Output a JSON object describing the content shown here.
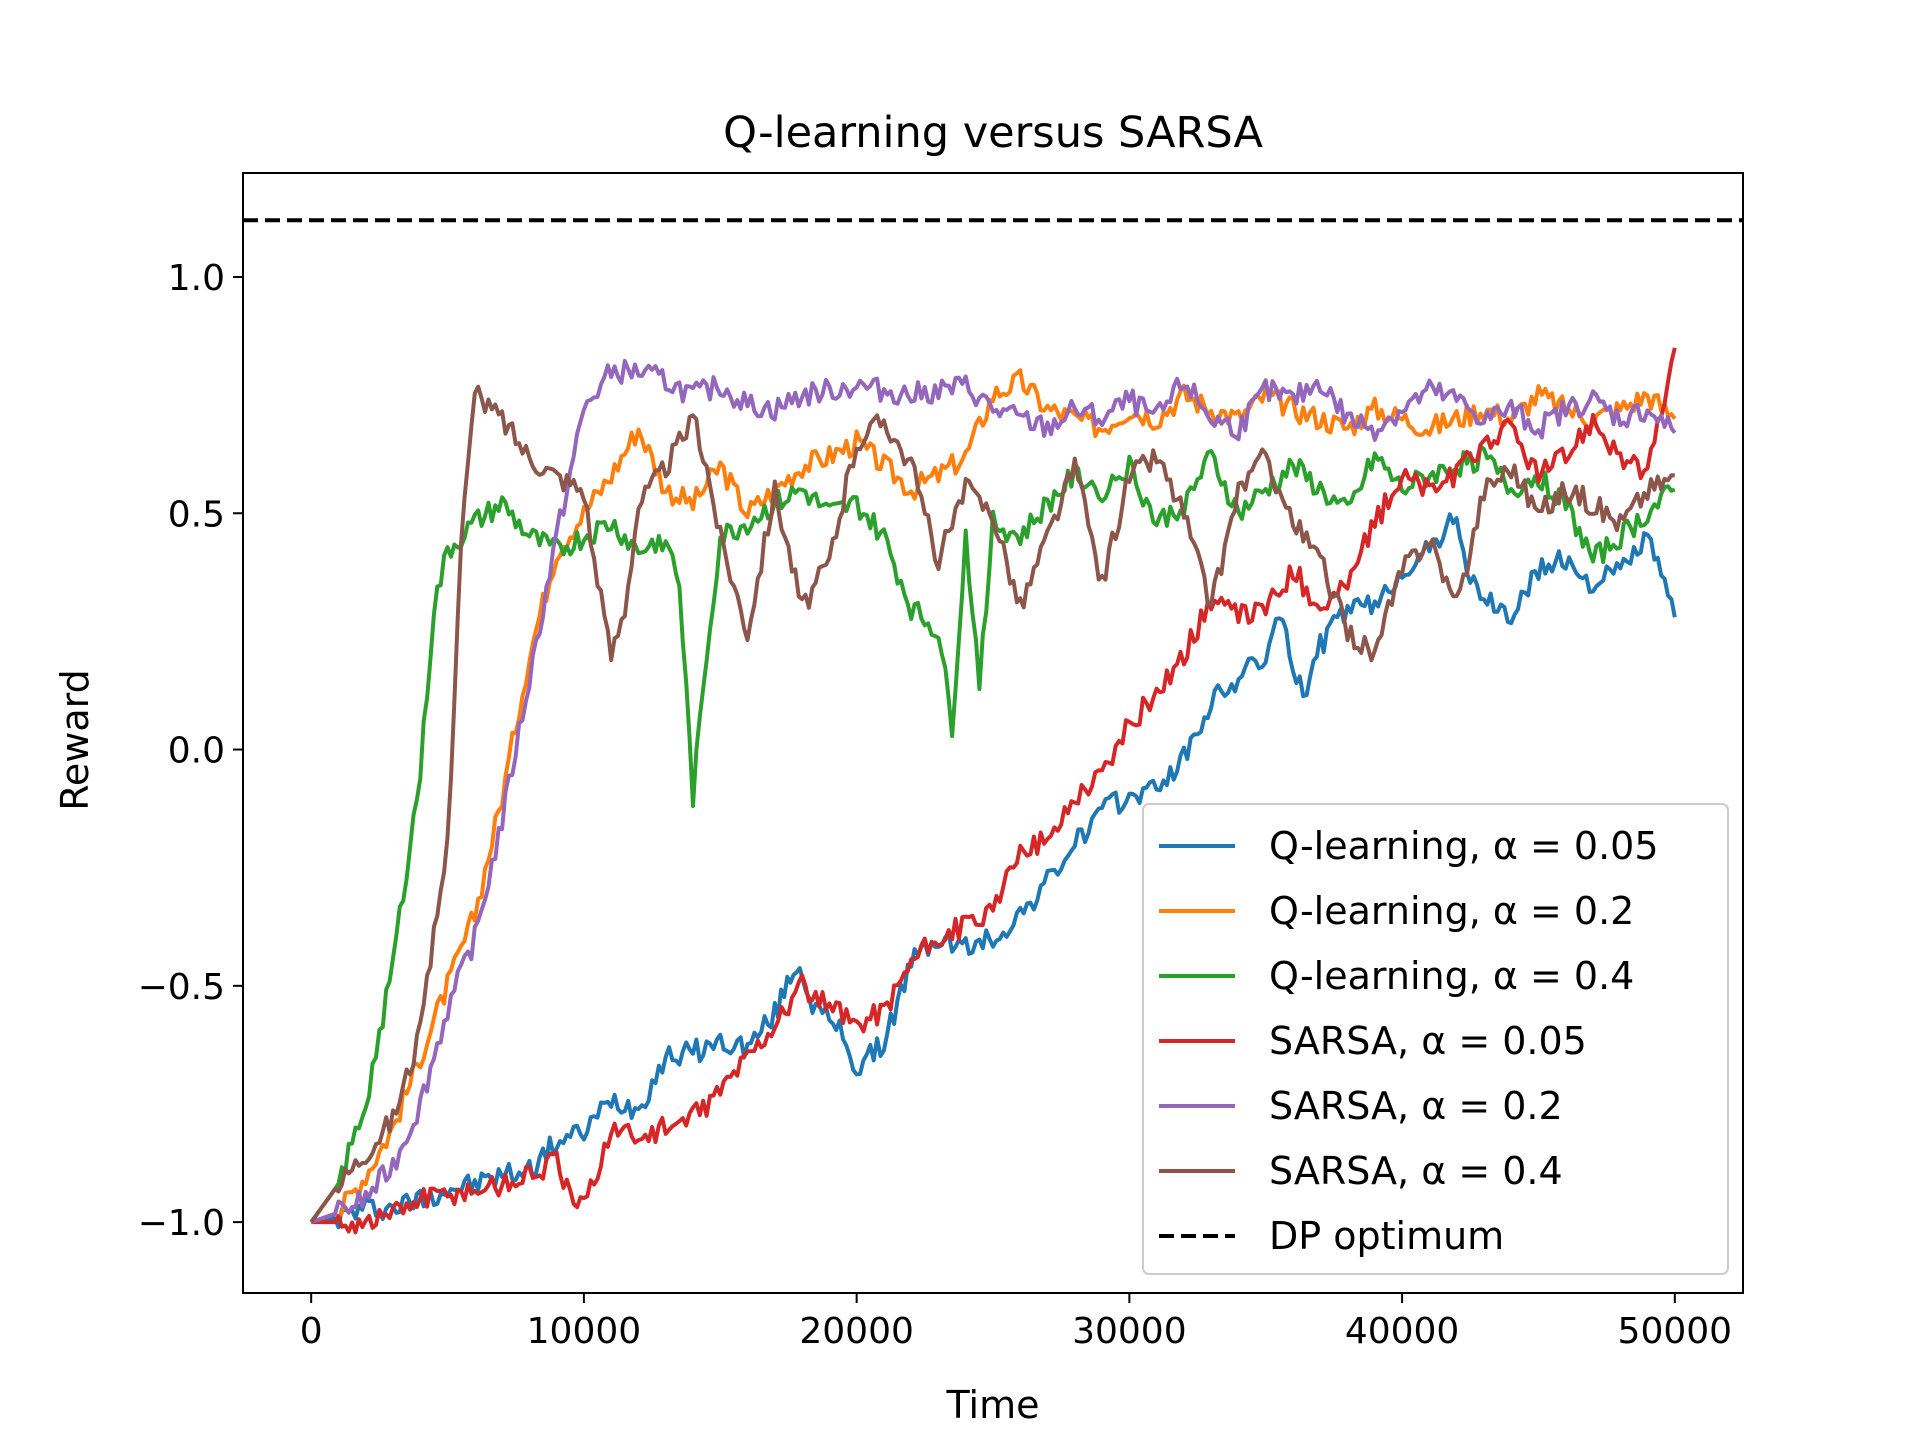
{
  "chart_data": {
    "type": "line",
    "title": "Q-learning versus SARSA",
    "xlabel": "Time",
    "ylabel": "Reward",
    "xlim": [
      -2500,
      52500
    ],
    "ylim": [
      -1.15,
      1.22
    ],
    "xticks": [
      {
        "value": 0,
        "label": "0"
      },
      {
        "value": 10000,
        "label": "10000"
      },
      {
        "value": 20000,
        "label": "20000"
      },
      {
        "value": 30000,
        "label": "30000"
      },
      {
        "value": 40000,
        "label": "40000"
      },
      {
        "value": 50000,
        "label": "50000"
      }
    ],
    "yticks": [
      {
        "value": -1.0,
        "label": "−1.0"
      },
      {
        "value": -0.5,
        "label": "−0.5"
      },
      {
        "value": 0.0,
        "label": "0.0"
      },
      {
        "value": 0.5,
        "label": "0.5"
      },
      {
        "value": 1.0,
        "label": "1.0"
      }
    ],
    "grid": false,
    "legend_position": "lower-right",
    "reference_line": {
      "name": "DP optimum",
      "y": 1.12,
      "style": "dashed",
      "color": "#000000"
    },
    "series": [
      {
        "name": "Q-learning, α = 0.05",
        "color": "#1f77b4",
        "x": [
          0,
          1000,
          2000,
          3000,
          4000,
          5000,
          6000,
          7000,
          8000,
          9000,
          10000,
          11000,
          12000,
          13000,
          14000,
          15000,
          16000,
          17000,
          17800,
          18500,
          19500,
          20000,
          21000,
          22000,
          23000,
          24000,
          25000,
          26000,
          27000,
          28000,
          29000,
          30000,
          31000,
          32000,
          33000,
          34000,
          35000,
          35500,
          36000,
          36500,
          37000,
          38000,
          39000,
          40000,
          41000,
          42000,
          42500,
          43000,
          44000,
          45000,
          46000,
          47000,
          48000,
          49000,
          50000
        ],
        "y": [
          -1.0,
          -0.99,
          -0.97,
          -0.97,
          -0.95,
          -0.93,
          -0.92,
          -0.9,
          -0.89,
          -0.83,
          -0.81,
          -0.74,
          -0.76,
          -0.65,
          -0.64,
          -0.62,
          -0.63,
          -0.56,
          -0.45,
          -0.55,
          -0.6,
          -0.68,
          -0.62,
          -0.45,
          -0.4,
          -0.42,
          -0.4,
          -0.35,
          -0.28,
          -0.2,
          -0.13,
          -0.1,
          -0.08,
          -0.02,
          0.1,
          0.15,
          0.2,
          0.28,
          0.18,
          0.12,
          0.22,
          0.3,
          0.3,
          0.38,
          0.42,
          0.5,
          0.35,
          0.32,
          0.28,
          0.38,
          0.4,
          0.35,
          0.38,
          0.45,
          0.28
        ]
      },
      {
        "name": "Q-learning, α = 0.2",
        "color": "#ff7f0e",
        "x": [
          0,
          1000,
          2000,
          3000,
          4000,
          5000,
          6000,
          7000,
          8000,
          9000,
          10000,
          11000,
          12000,
          13000,
          14000,
          15000,
          16000,
          17000,
          18000,
          19000,
          20000,
          21000,
          22000,
          23000,
          24000,
          25000,
          26000,
          27000,
          28000,
          29000,
          30000,
          31000,
          32000,
          33000,
          34000,
          35000,
          36000,
          37000,
          38000,
          39000,
          40000,
          41000,
          42000,
          43000,
          44000,
          45000,
          46000,
          47000,
          48000,
          49000,
          50000
        ],
        "y": [
          -1.0,
          -0.98,
          -0.9,
          -0.8,
          -0.65,
          -0.5,
          -0.35,
          -0.1,
          0.2,
          0.42,
          0.5,
          0.58,
          0.68,
          0.55,
          0.52,
          0.6,
          0.5,
          0.55,
          0.6,
          0.62,
          0.65,
          0.6,
          0.55,
          0.58,
          0.62,
          0.75,
          0.78,
          0.72,
          0.7,
          0.68,
          0.72,
          0.7,
          0.75,
          0.72,
          0.7,
          0.75,
          0.72,
          0.7,
          0.68,
          0.72,
          0.7,
          0.68,
          0.7,
          0.72,
          0.7,
          0.75,
          0.72,
          0.7,
          0.72,
          0.75,
          0.7
        ]
      },
      {
        "name": "Q-learning, α = 0.4",
        "color": "#2ca02c",
        "x": [
          0,
          1000,
          2000,
          3000,
          4000,
          4500,
          5000,
          6000,
          7000,
          8000,
          9000,
          10000,
          11000,
          12000,
          13000,
          13500,
          14000,
          14500,
          15000,
          16000,
          17000,
          18000,
          19000,
          20000,
          21000,
          22000,
          23000,
          23500,
          24000,
          24500,
          25000,
          26000,
          27000,
          28000,
          29000,
          30000,
          31000,
          32000,
          33000,
          34000,
          35000,
          36000,
          37000,
          38000,
          39000,
          40000,
          41000,
          42000,
          43000,
          44000,
          45000,
          46000,
          47000,
          48000,
          49000,
          50000
        ],
        "y": [
          -1.0,
          -0.92,
          -0.75,
          -0.45,
          -0.05,
          0.3,
          0.42,
          0.48,
          0.52,
          0.45,
          0.42,
          0.45,
          0.48,
          0.42,
          0.45,
          0.35,
          -0.1,
          0.2,
          0.45,
          0.48,
          0.52,
          0.55,
          0.5,
          0.52,
          0.45,
          0.3,
          0.25,
          0.05,
          0.45,
          0.15,
          0.48,
          0.45,
          0.52,
          0.58,
          0.55,
          0.6,
          0.48,
          0.52,
          0.62,
          0.5,
          0.55,
          0.6,
          0.55,
          0.5,
          0.62,
          0.55,
          0.58,
          0.6,
          0.62,
          0.55,
          0.58,
          0.52,
          0.4,
          0.45,
          0.5,
          0.55
        ]
      },
      {
        "name": "SARSA, α = 0.05",
        "color": "#d62728",
        "x": [
          0,
          1000,
          2000,
          3000,
          4000,
          5000,
          6000,
          7000,
          8000,
          9000,
          9500,
          10000,
          11000,
          12000,
          13000,
          14000,
          15000,
          16000,
          17000,
          18000,
          19000,
          20000,
          21000,
          22000,
          23000,
          24000,
          25000,
          26000,
          27000,
          28000,
          29000,
          30000,
          31000,
          32000,
          33000,
          34000,
          35000,
          36000,
          37000,
          38000,
          39000,
          40000,
          41000,
          42000,
          43000,
          44000,
          45000,
          46000,
          47000,
          48000,
          49000,
          50000
        ],
        "y": [
          -1.0,
          -1.0,
          -1.0,
          -0.98,
          -0.95,
          -0.94,
          -0.93,
          -0.92,
          -0.9,
          -0.87,
          -0.95,
          -0.97,
          -0.8,
          -0.82,
          -0.8,
          -0.78,
          -0.72,
          -0.65,
          -0.58,
          -0.5,
          -0.55,
          -0.58,
          -0.55,
          -0.45,
          -0.4,
          -0.37,
          -0.35,
          -0.2,
          -0.2,
          -0.1,
          -0.05,
          0.05,
          0.12,
          0.2,
          0.32,
          0.28,
          0.3,
          0.38,
          0.3,
          0.35,
          0.48,
          0.58,
          0.55,
          0.58,
          0.65,
          0.68,
          0.58,
          0.62,
          0.7,
          0.62,
          0.58,
          0.85
        ]
      },
      {
        "name": "SARSA, α = 0.2",
        "color": "#9467bd",
        "x": [
          0,
          1000,
          2000,
          3000,
          4000,
          5000,
          6000,
          7000,
          8000,
          9000,
          10000,
          11000,
          12000,
          13000,
          14000,
          15000,
          16000,
          17000,
          18000,
          19000,
          20000,
          21000,
          22000,
          23000,
          24000,
          25000,
          26000,
          27000,
          28000,
          29000,
          30000,
          31000,
          32000,
          33000,
          34000,
          35000,
          36000,
          37000,
          38000,
          39000,
          40000,
          41000,
          42000,
          43000,
          44000,
          45000,
          46000,
          47000,
          48000,
          49000,
          50000
        ],
        "y": [
          -1.0,
          -0.98,
          -0.95,
          -0.88,
          -0.75,
          -0.55,
          -0.4,
          -0.15,
          0.15,
          0.45,
          0.72,
          0.8,
          0.8,
          0.78,
          0.75,
          0.77,
          0.73,
          0.72,
          0.75,
          0.76,
          0.77,
          0.76,
          0.75,
          0.76,
          0.77,
          0.72,
          0.7,
          0.68,
          0.72,
          0.7,
          0.74,
          0.7,
          0.78,
          0.7,
          0.68,
          0.76,
          0.74,
          0.78,
          0.7,
          0.68,
          0.72,
          0.76,
          0.74,
          0.7,
          0.72,
          0.68,
          0.72,
          0.74,
          0.7,
          0.72,
          0.67
        ]
      },
      {
        "name": "SARSA, α = 0.4",
        "color": "#8c564b",
        "x": [
          0,
          1000,
          2000,
          3000,
          4000,
          5000,
          5500,
          6000,
          7000,
          8000,
          9000,
          10000,
          10500,
          11000,
          11500,
          12000,
          13000,
          14000,
          14500,
          15000,
          15500,
          16000,
          17000,
          18000,
          19000,
          20000,
          21000,
          22000,
          23000,
          24000,
          25000,
          26000,
          27000,
          28000,
          29000,
          30000,
          31000,
          32000,
          33000,
          34000,
          35000,
          36000,
          37000,
          38000,
          39000,
          40000,
          41000,
          42000,
          43000,
          44000,
          45000,
          46000,
          47000,
          48000,
          49000,
          50000
        ],
        "y": [
          -1.0,
          -0.92,
          -0.85,
          -0.78,
          -0.6,
          -0.2,
          0.45,
          0.75,
          0.7,
          0.62,
          0.58,
          0.55,
          0.35,
          0.2,
          0.3,
          0.52,
          0.6,
          0.7,
          0.6,
          0.45,
          0.35,
          0.25,
          0.55,
          0.3,
          0.4,
          0.65,
          0.7,
          0.6,
          0.4,
          0.55,
          0.5,
          0.3,
          0.45,
          0.6,
          0.35,
          0.58,
          0.62,
          0.5,
          0.3,
          0.55,
          0.62,
          0.48,
          0.4,
          0.25,
          0.2,
          0.38,
          0.45,
          0.3,
          0.55,
          0.6,
          0.5,
          0.55,
          0.52,
          0.48,
          0.55,
          0.58
        ]
      }
    ]
  }
}
